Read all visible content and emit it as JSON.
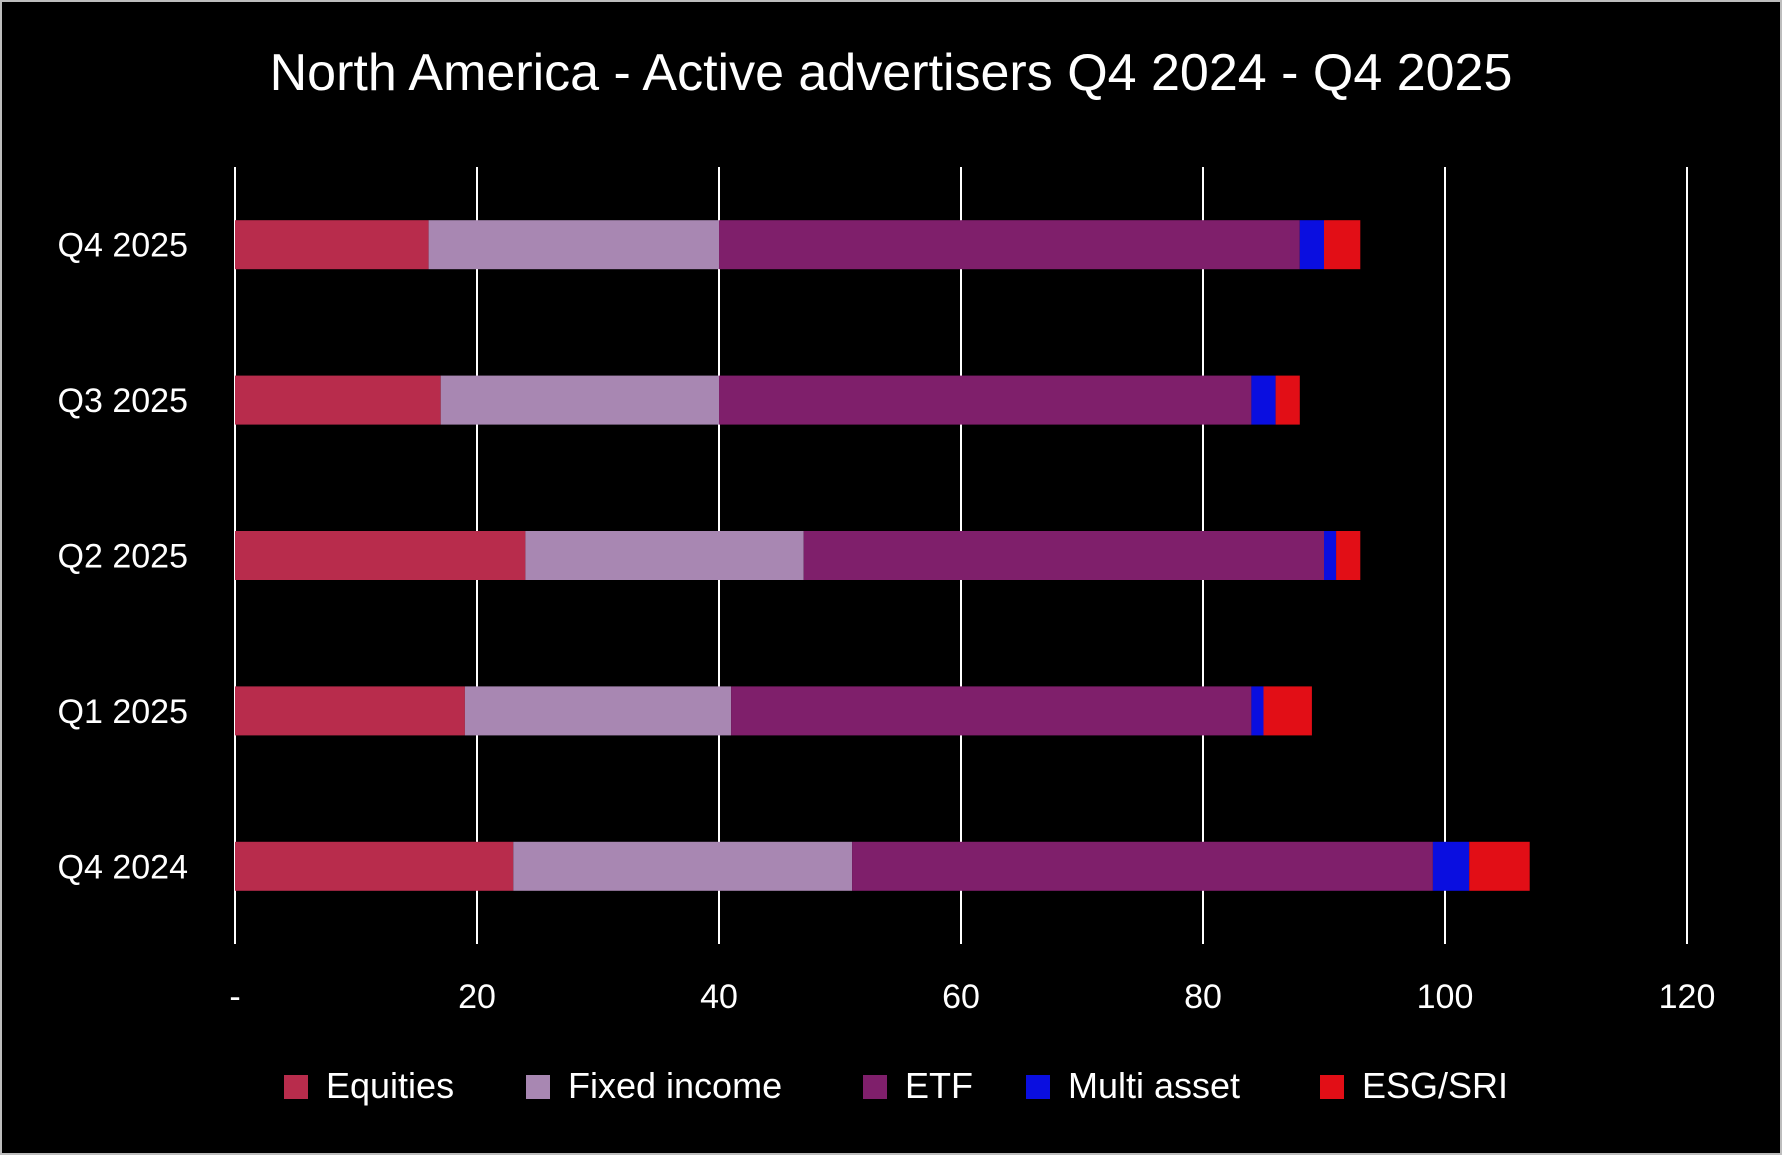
{
  "chart_data": {
    "type": "bar",
    "orientation": "horizontal",
    "stacked": true,
    "title": "North America - Active advertisers Q4 2024 - Q4 2025",
    "categories": [
      "Q4 2025",
      "Q3 2025",
      "Q2 2025",
      "Q1 2025",
      "Q4 2024"
    ],
    "series": [
      {
        "name": "Equities",
        "color": "#b82c4c",
        "values": [
          16,
          17,
          24,
          19,
          23
        ]
      },
      {
        "name": "Fixed income",
        "color": "#a887b2",
        "values": [
          24,
          23,
          23,
          22,
          28
        ]
      },
      {
        "name": "ETF",
        "color": "#7f1f6b",
        "values": [
          48,
          44,
          43,
          43,
          48
        ]
      },
      {
        "name": "Multi asset",
        "color": "#0a0ee0",
        "values": [
          2,
          2,
          1,
          1,
          3
        ]
      },
      {
        "name": "ESG/SRI",
        "color": "#e20e16",
        "values": [
          3,
          2,
          2,
          4,
          5
        ]
      }
    ],
    "xlim": [
      0,
      120
    ],
    "x_ticks": [
      0,
      20,
      40,
      60,
      80,
      100,
      120
    ],
    "x_tick_labels": [
      "-",
      "20",
      "40",
      "60",
      "80",
      "100",
      "120"
    ],
    "xlabel": "",
    "ylabel": "",
    "grid": "vertical",
    "legend_position": "bottom",
    "colors": {
      "background": "#000000",
      "text": "#ffffff",
      "grid": "#ffffff",
      "border": "#bdbdbd"
    }
  }
}
